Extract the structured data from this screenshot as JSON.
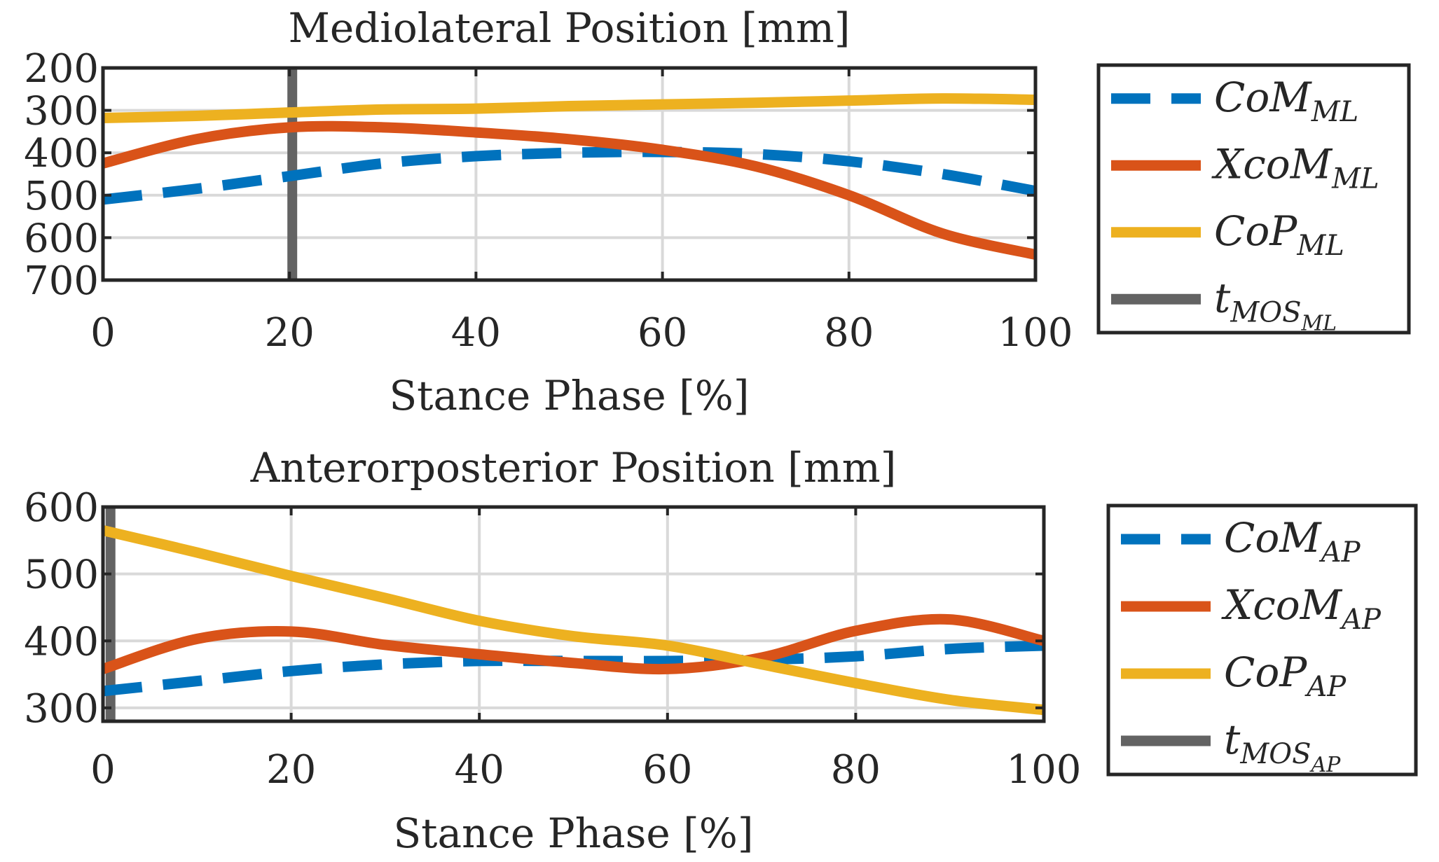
{
  "chart_data": [
    {
      "type": "line",
      "title": "Mediolateral Position [mm]",
      "xlabel": "Stance Phase [%]",
      "ylabel": "",
      "xlim": [
        0,
        100
      ],
      "ylim": [
        200,
        700
      ],
      "y_reversed": true,
      "xticks": [
        "0",
        "20",
        "40",
        "60",
        "80",
        "100"
      ],
      "yticks": [
        "200",
        "300",
        "400",
        "500",
        "600",
        "700"
      ],
      "grid": true,
      "legend_position": "right",
      "x": [
        0,
        10,
        20,
        30,
        40,
        50,
        60,
        70,
        80,
        90,
        100
      ],
      "series": [
        {
          "name": "CoM_ML",
          "label_main": "CoM",
          "label_sub": "ML",
          "style": "dashed",
          "color": "#0072BD",
          "values": [
            510,
            485,
            455,
            425,
            408,
            400,
            398,
            403,
            420,
            450,
            490
          ]
        },
        {
          "name": "XcoM_ML",
          "label_main": "XcoM",
          "label_sub": "ML",
          "style": "solid",
          "color": "#D95319",
          "values": [
            425,
            368,
            340,
            340,
            352,
            368,
            393,
            432,
            500,
            590,
            640
          ]
        },
        {
          "name": "CoP_ML",
          "label_main": "CoP",
          "label_sub": "ML",
          "style": "solid",
          "color": "#EDB120",
          "values": [
            318,
            313,
            305,
            298,
            296,
            290,
            286,
            282,
            277,
            272,
            275
          ]
        },
        {
          "name": "t_MOS_ML",
          "label_main": "t",
          "label_sub": "MOS",
          "label_subsub": "ML",
          "style": "vertical",
          "color": "#636363",
          "x_value": 20.3
        }
      ]
    },
    {
      "type": "line",
      "title": "Anterorposterior Position [mm]",
      "xlabel": "Stance Phase [%]",
      "ylabel": "",
      "xlim": [
        0,
        100
      ],
      "ylim": [
        280,
        600
      ],
      "xticks": [
        "0",
        "20",
        "40",
        "60",
        "80",
        "100"
      ],
      "yticks": [
        "300",
        "400",
        "500",
        "600"
      ],
      "grid": true,
      "legend_position": "right",
      "x": [
        0,
        10,
        20,
        30,
        40,
        50,
        60,
        70,
        80,
        90,
        100
      ],
      "series": [
        {
          "name": "CoM_AP",
          "label_main": "CoM",
          "label_sub": "AP",
          "style": "dashed",
          "color": "#0072BD",
          "values": [
            325,
            340,
            355,
            365,
            370,
            370,
            370,
            372,
            377,
            388,
            393
          ]
        },
        {
          "name": "XcoM_AP",
          "label_main": "XcoM",
          "label_sub": "AP",
          "style": "solid",
          "color": "#D95319",
          "values": [
            358,
            403,
            414,
            394,
            380,
            367,
            358,
            375,
            415,
            432,
            400
          ]
        },
        {
          "name": "CoP_AP",
          "label_main": "CoP",
          "label_sub": "AP",
          "style": "solid",
          "color": "#EDB120",
          "values": [
            565,
            532,
            497,
            464,
            430,
            407,
            393,
            365,
            337,
            312,
            297
          ]
        },
        {
          "name": "t_MOS_AP",
          "label_main": "t",
          "label_sub": "MOS",
          "label_subsub": "AP",
          "style": "vertical",
          "color": "#636363",
          "x_value": 0.8
        }
      ]
    }
  ]
}
